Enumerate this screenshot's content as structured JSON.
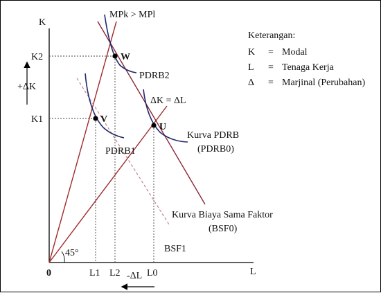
{
  "axes": {
    "y_label": "K",
    "x_label": "L",
    "origin": "0",
    "angle_label": "45°"
  },
  "ticks": {
    "y": [
      "K2",
      "K1"
    ],
    "x": [
      "L1",
      "L2",
      "L0"
    ]
  },
  "deltas": {
    "k": "+ΔK",
    "l": "-ΔL"
  },
  "points": {
    "w": "W",
    "v": "V",
    "u": "U"
  },
  "curve_labels": {
    "mpk_gt_mpl": "MPk > MPl",
    "dk_eq_dl": "ΔK = ΔL",
    "pdrb2": "PDRB2",
    "pdrb1": "PDRB1",
    "kurva_pdrb": "Kurva PDRB",
    "pdrb0": "(PDRB0)",
    "bsf_title": "Kurva Biaya Sama Faktor",
    "bsf0": "(BSF0)",
    "bsf1": "BSF1"
  },
  "legend": {
    "title": "Keterangan:",
    "rows": [
      {
        "key": "K",
        "eq": "=",
        "value": "Modal"
      },
      {
        "key": "L",
        "eq": "=",
        "value": "Tenaga Kerja"
      },
      {
        "key": "Δ",
        "eq": "=",
        "value": "Marjinal (Perubahan)"
      }
    ]
  },
  "colors": {
    "isoquant": "#1f2a6b",
    "ray": "#a02a2a",
    "cost_line": "#8b2535",
    "cost_line_dashed": "#c07a88",
    "guide": "#444444",
    "axis": "#000000"
  }
}
